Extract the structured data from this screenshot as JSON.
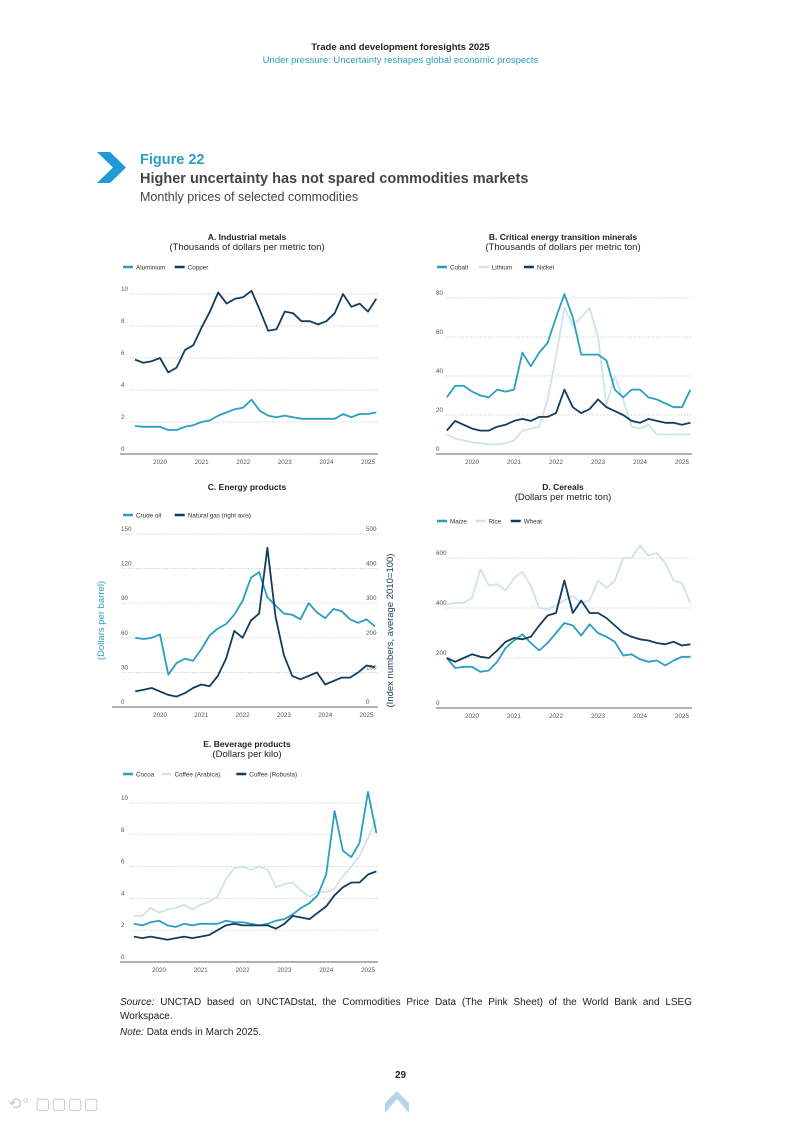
{
  "header": {
    "report_title": "Trade and development foresights 2025",
    "report_subtitle": "Under pressure: Uncertainty reshapes global economic prospects"
  },
  "figure": {
    "label": "Figure 22",
    "title": "Higher uncertainty has not spared commodities markets",
    "subtitle": "Monthly prices of selected commodities",
    "icon": "chevron-right-icon"
  },
  "footer": {
    "source_label": "Source:",
    "source_text": "UNCTAD based on UNCTADstat, the Commodities Price Data (The Pink Sheet) of the World Bank and LSEG Workspace.",
    "note_label": "Note:",
    "note_text": "Data ends in March 2025.",
    "page_number": "29",
    "watermark": "大数跨境"
  },
  "colors": {
    "teal": "#2a9fc0",
    "navy": "#123d5e",
    "light": "#cfe3ea",
    "grid": "#bbbbbb"
  },
  "chart_data": [
    {
      "type": "line",
      "title": "A. Industrial metals",
      "subtitle": "(Thousands of dollars per metric ton)",
      "xlabel": "",
      "ylabel": "",
      "x_ticks": [
        "2020",
        "2021",
        "2022",
        "2023",
        "2024",
        "2025"
      ],
      "y_ticks": [
        0,
        2,
        4,
        6,
        8,
        10
      ],
      "ylim": [
        0,
        10
      ],
      "grid": true,
      "legend": "top-left",
      "x": [
        2019.4,
        2019.6,
        2019.8,
        2020.0,
        2020.2,
        2020.4,
        2020.6,
        2020.8,
        2021.0,
        2021.2,
        2021.4,
        2021.6,
        2021.8,
        2022.0,
        2022.2,
        2022.4,
        2022.6,
        2022.8,
        2023.0,
        2023.2,
        2023.4,
        2023.6,
        2023.8,
        2024.0,
        2024.2,
        2024.4,
        2024.6,
        2024.8,
        2025.0,
        2025.2
      ],
      "series": [
        {
          "name": "Aluminium",
          "color": "#2a9fc0",
          "values": [
            1.75,
            1.7,
            1.7,
            1.7,
            1.5,
            1.5,
            1.7,
            1.8,
            2.0,
            2.1,
            2.4,
            2.6,
            2.8,
            2.9,
            3.4,
            2.7,
            2.4,
            2.3,
            2.4,
            2.3,
            2.2,
            2.2,
            2.2,
            2.2,
            2.2,
            2.5,
            2.3,
            2.5,
            2.5,
            2.6
          ]
        },
        {
          "name": "Copper",
          "color": "#123d5e",
          "values": [
            5.9,
            5.7,
            5.8,
            6.0,
            5.1,
            5.4,
            6.5,
            6.8,
            7.9,
            8.9,
            10.1,
            9.4,
            9.7,
            9.8,
            10.2,
            9.0,
            7.7,
            7.8,
            8.9,
            8.8,
            8.3,
            8.3,
            8.1,
            8.3,
            8.8,
            10.0,
            9.2,
            9.4,
            8.9,
            9.7
          ]
        }
      ]
    },
    {
      "type": "line",
      "title": "B. Critical energy transition minerals",
      "subtitle": "(Thousands of dollars per metric ton)",
      "xlabel": "",
      "ylabel": "",
      "x_ticks": [
        "2020",
        "2021",
        "2022",
        "2023",
        "2024",
        "2025"
      ],
      "y_ticks": [
        0,
        20,
        40,
        60,
        80
      ],
      "ylim": [
        0,
        80
      ],
      "grid": true,
      "legend": "top-left",
      "x": [
        2019.4,
        2019.6,
        2019.8,
        2020.0,
        2020.2,
        2020.4,
        2020.6,
        2020.8,
        2021.0,
        2021.2,
        2021.4,
        2021.6,
        2021.8,
        2022.0,
        2022.2,
        2022.4,
        2022.6,
        2022.8,
        2023.0,
        2023.2,
        2023.4,
        2023.6,
        2023.8,
        2024.0,
        2024.2,
        2024.4,
        2024.6,
        2024.8,
        2025.0,
        2025.2
      ],
      "series": [
        {
          "name": "Cobalt",
          "color": "#2a9fc0",
          "values": [
            29,
            35,
            35,
            32,
            30,
            29,
            33,
            32,
            33,
            52,
            45,
            52,
            57,
            70,
            82,
            70,
            51,
            51,
            51,
            48,
            33,
            29,
            33,
            33,
            29,
            28,
            26,
            24,
            24,
            33
          ]
        },
        {
          "name": "Lithium",
          "color": "#cfe3ea",
          "values": [
            10,
            8,
            7,
            6,
            5.5,
            5,
            5,
            5.5,
            7,
            12,
            13,
            14,
            28,
            50,
            75,
            66,
            70,
            75,
            60,
            25,
            40,
            28,
            14,
            13,
            15,
            10,
            10,
            10,
            10,
            10
          ]
        },
        {
          "name": "Nickel",
          "color": "#123d5e",
          "values": [
            12,
            17,
            15,
            13,
            12,
            12,
            14,
            15,
            17,
            18,
            17,
            19,
            19,
            21,
            33,
            24,
            21,
            23,
            28,
            24,
            22,
            20,
            17,
            16,
            18,
            17,
            16,
            16,
            15,
            16
          ]
        }
      ]
    },
    {
      "type": "line",
      "title": "C. Energy products",
      "subtitle": "",
      "xlabel": "",
      "ylabel": "(Dollars per barrel)",
      "ylabel_right": "(Index numbers, average 2010=100)",
      "x_ticks": [
        "2020",
        "2021",
        "2022",
        "2023",
        "2024",
        "2025"
      ],
      "y_ticks": [
        0,
        30,
        60,
        90,
        120,
        150
      ],
      "y_ticks_right": [
        0,
        100,
        200,
        300,
        400,
        500
      ],
      "ylim": [
        0,
        150
      ],
      "ylim_right": [
        0,
        500
      ],
      "grid": true,
      "legend": "top-left",
      "x": [
        2019.4,
        2019.6,
        2019.8,
        2020.0,
        2020.2,
        2020.4,
        2020.6,
        2020.8,
        2021.0,
        2021.2,
        2021.4,
        2021.6,
        2021.8,
        2022.0,
        2022.2,
        2022.4,
        2022.6,
        2022.8,
        2023.0,
        2023.2,
        2023.4,
        2023.6,
        2023.8,
        2024.0,
        2024.2,
        2024.4,
        2024.6,
        2024.8,
        2025.0,
        2025.2
      ],
      "series": [
        {
          "name": "Crude oil",
          "axis": "left",
          "color": "#2a9fc0",
          "values": [
            60,
            59,
            60,
            63,
            28,
            38,
            42,
            40,
            50,
            62,
            68,
            72,
            80,
            92,
            112,
            117,
            95,
            88,
            81,
            80,
            76,
            90,
            82,
            77,
            85,
            83,
            76,
            73,
            76,
            70
          ]
        },
        {
          "name": "Natural gas (right axis)",
          "axis": "right",
          "color": "#123d5e",
          "values": [
            45,
            50,
            55,
            45,
            35,
            30,
            40,
            55,
            65,
            60,
            90,
            140,
            220,
            200,
            250,
            270,
            460,
            260,
            150,
            90,
            80,
            90,
            100,
            65,
            75,
            85,
            85,
            100,
            120,
            115
          ]
        }
      ]
    },
    {
      "type": "line",
      "title": "D. Cereals",
      "subtitle": "(Dollars per metric ton)",
      "xlabel": "",
      "ylabel": "",
      "x_ticks": [
        "2020",
        "2021",
        "2022",
        "2023",
        "2024",
        "2025"
      ],
      "y_ticks": [
        0,
        200,
        400,
        600
      ],
      "ylim": [
        0,
        600
      ],
      "grid": true,
      "legend": "top-left",
      "x": [
        2019.4,
        2019.6,
        2019.8,
        2020.0,
        2020.2,
        2020.4,
        2020.6,
        2020.8,
        2021.0,
        2021.2,
        2021.4,
        2021.6,
        2021.8,
        2022.0,
        2022.2,
        2022.4,
        2022.6,
        2022.8,
        2023.0,
        2023.2,
        2023.4,
        2023.6,
        2023.8,
        2024.0,
        2024.2,
        2024.4,
        2024.6,
        2024.8,
        2025.0,
        2025.2
      ],
      "series": [
        {
          "name": "Maize",
          "color": "#2a9fc0",
          "values": [
            200,
            160,
            165,
            165,
            145,
            150,
            185,
            240,
            270,
            295,
            260,
            230,
            260,
            300,
            340,
            330,
            290,
            335,
            300,
            285,
            265,
            210,
            215,
            195,
            185,
            190,
            170,
            190,
            205,
            205
          ]
        },
        {
          "name": "Rice",
          "color": "#cfe3ea",
          "values": [
            415,
            420,
            420,
            440,
            555,
            490,
            495,
            470,
            520,
            545,
            490,
            400,
            395,
            410,
            430,
            450,
            420,
            430,
            510,
            480,
            510,
            600,
            600,
            650,
            610,
            620,
            580,
            510,
            500,
            420
          ]
        },
        {
          "name": "Wheat",
          "color": "#123d5e",
          "values": [
            200,
            185,
            200,
            215,
            205,
            200,
            230,
            265,
            280,
            275,
            285,
            330,
            370,
            380,
            510,
            380,
            430,
            380,
            380,
            360,
            330,
            300,
            285,
            275,
            270,
            260,
            255,
            265,
            250,
            255
          ]
        }
      ]
    },
    {
      "type": "line",
      "title": "E. Beverage products",
      "subtitle": "(Dollars per kilo)",
      "xlabel": "",
      "ylabel": "",
      "x_ticks": [
        "2020",
        "2021",
        "2022",
        "2023",
        "2024",
        "2025"
      ],
      "y_ticks": [
        0,
        2,
        4,
        6,
        8,
        10
      ],
      "ylim": [
        0,
        10
      ],
      "grid": true,
      "legend": "top-left",
      "x": [
        2019.4,
        2019.6,
        2019.8,
        2020.0,
        2020.2,
        2020.4,
        2020.6,
        2020.8,
        2021.0,
        2021.2,
        2021.4,
        2021.6,
        2021.8,
        2022.0,
        2022.2,
        2022.4,
        2022.6,
        2022.8,
        2023.0,
        2023.2,
        2023.4,
        2023.6,
        2023.8,
        2024.0,
        2024.2,
        2024.4,
        2024.6,
        2024.8,
        2025.0,
        2025.2
      ],
      "series": [
        {
          "name": "Cocoa",
          "color": "#2a9fc0",
          "values": [
            2.4,
            2.3,
            2.5,
            2.6,
            2.3,
            2.2,
            2.4,
            2.3,
            2.4,
            2.4,
            2.4,
            2.6,
            2.5,
            2.5,
            2.4,
            2.3,
            2.4,
            2.6,
            2.7,
            3.0,
            3.4,
            3.7,
            4.2,
            5.5,
            9.5,
            7.0,
            6.6,
            7.5,
            10.7,
            8.1
          ]
        },
        {
          "name": "Coffee (Arabica)",
          "color": "#cfe3ea",
          "values": [
            2.9,
            2.9,
            3.4,
            3.1,
            3.3,
            3.4,
            3.6,
            3.3,
            3.6,
            3.8,
            4.1,
            5.2,
            5.9,
            6.0,
            5.8,
            6.0,
            5.8,
            4.7,
            4.9,
            5.0,
            4.5,
            4.1,
            4.4,
            4.4,
            4.6,
            5.4,
            6.0,
            6.7,
            7.8,
            9.0
          ]
        },
        {
          "name": "Coffee (Robusta)",
          "color": "#123d5e",
          "values": [
            1.6,
            1.5,
            1.6,
            1.5,
            1.4,
            1.5,
            1.6,
            1.5,
            1.6,
            1.7,
            2.0,
            2.3,
            2.4,
            2.3,
            2.3,
            2.3,
            2.3,
            2.1,
            2.4,
            2.9,
            2.8,
            2.7,
            3.1,
            3.5,
            4.2,
            4.7,
            5.0,
            5.0,
            5.5,
            5.7
          ]
        }
      ]
    }
  ]
}
